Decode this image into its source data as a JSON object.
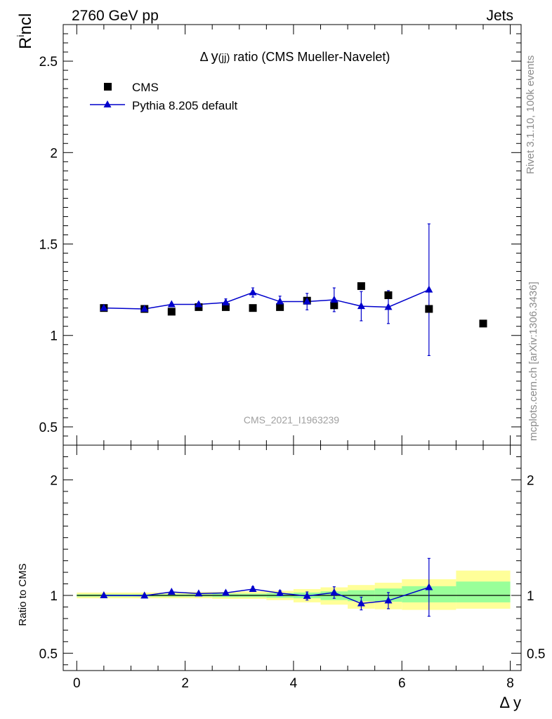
{
  "header": {
    "left": "2760 GeV pp",
    "right": "Jets"
  },
  "side_labels": {
    "rivet": "Rivet 3.1.10,  100k events",
    "mcplots": "mcplots.cern.ch [arXiv:1306.3436]"
  },
  "watermark": "CMS_2021_I1963239",
  "colors": {
    "cms": "#000000",
    "pythia": "#0000cc",
    "band_outer": "#ffff99",
    "band_inner": "#99ff99"
  },
  "chart_data": [
    {
      "type": "scatter",
      "title": "Δ y(jj) ratio (CMS Mueller-Navelet)",
      "title_parts": {
        "delta": "Δ",
        "y": "y",
        "sub": "(jj)",
        "rest": " ratio (CMS Mueller-Navelet)"
      },
      "ylabel": "R^i ncl",
      "ylabel_parts": {
        "base": "R",
        "sup": "i",
        "rest": "ncl"
      },
      "xlim": [
        -0.25,
        8.2
      ],
      "ylim": [
        0.4,
        2.7
      ],
      "yticks": [
        0.5,
        1,
        1.5,
        2,
        2.5
      ],
      "ytick_labels": [
        "0.5",
        "1",
        "1.5",
        "2",
        "2.5"
      ],
      "legend": [
        {
          "name": "CMS",
          "marker": "square"
        },
        {
          "name": "Pythia 8.205 default",
          "marker": "triangle"
        }
      ],
      "legend_position": "top-left",
      "series": [
        {
          "name": "CMS",
          "x": [
            0.5,
            1.25,
            1.75,
            2.25,
            2.75,
            3.25,
            3.75,
            4.25,
            4.75,
            5.25,
            5.75,
            6.5,
            7.5
          ],
          "y": [
            1.15,
            1.145,
            1.13,
            1.155,
            1.155,
            1.15,
            1.155,
            1.19,
            1.165,
            1.27,
            1.22,
            1.145,
            1.065
          ]
        },
        {
          "name": "Pythia 8.205 default",
          "x": [
            0.5,
            1.25,
            1.75,
            2.25,
            2.75,
            3.25,
            3.75,
            4.25,
            4.75,
            5.25,
            5.75,
            6.5
          ],
          "y": [
            1.15,
            1.145,
            1.17,
            1.17,
            1.18,
            1.235,
            1.185,
            1.185,
            1.195,
            1.16,
            1.155,
            1.25
          ],
          "yerr": [
            0.005,
            0.005,
            0.008,
            0.01,
            0.02,
            0.025,
            0.03,
            0.045,
            0.065,
            0.08,
            0.09,
            0.36
          ]
        }
      ]
    },
    {
      "type": "scatter",
      "ylabel": "Ratio to CMS",
      "xlabel": "Δ y",
      "xlim": [
        -0.25,
        8.2
      ],
      "ylim": [
        0.35,
        2.3
      ],
      "xticks": [
        0,
        2,
        4,
        6,
        8
      ],
      "xtick_labels": [
        "0",
        "2",
        "4",
        "6",
        "8"
      ],
      "yticks": [
        0.5,
        1,
        2
      ],
      "ytick_labels": [
        "0.5",
        "1",
        "2"
      ],
      "bands": {
        "edges": [
          0,
          1,
          1.5,
          2,
          2.5,
          3,
          3.5,
          4,
          4.5,
          5,
          5.5,
          6,
          7,
          8
        ],
        "outer_lo": [
          0.975,
          0.975,
          0.975,
          0.975,
          0.97,
          0.97,
          0.96,
          0.94,
          0.92,
          0.885,
          0.88,
          0.875,
          0.885
        ],
        "outer_hi": [
          1.025,
          1.025,
          1.025,
          1.03,
          1.03,
          1.035,
          1.04,
          1.055,
          1.07,
          1.09,
          1.11,
          1.14,
          1.215
        ],
        "inner_lo": [
          0.99,
          0.99,
          0.99,
          0.99,
          0.985,
          0.985,
          0.98,
          0.975,
          0.96,
          0.95,
          0.945,
          0.94,
          0.94
        ],
        "inner_hi": [
          1.01,
          1.01,
          1.01,
          1.01,
          1.015,
          1.015,
          1.02,
          1.025,
          1.035,
          1.045,
          1.06,
          1.08,
          1.12
        ]
      },
      "series": [
        {
          "name": "Pythia 8.205 default / CMS",
          "x": [
            0.5,
            1.25,
            1.75,
            2.25,
            2.75,
            3.25,
            3.75,
            4.25,
            4.75,
            5.25,
            5.75,
            6.5
          ],
          "y": [
            1.0,
            0.998,
            1.03,
            1.016,
            1.022,
            1.055,
            1.02,
            0.995,
            1.025,
            0.93,
            0.955,
            1.07
          ],
          "yerr": [
            0.005,
            0.005,
            0.008,
            0.01,
            0.015,
            0.02,
            0.022,
            0.035,
            0.05,
            0.055,
            0.07,
            0.25
          ]
        }
      ]
    }
  ]
}
